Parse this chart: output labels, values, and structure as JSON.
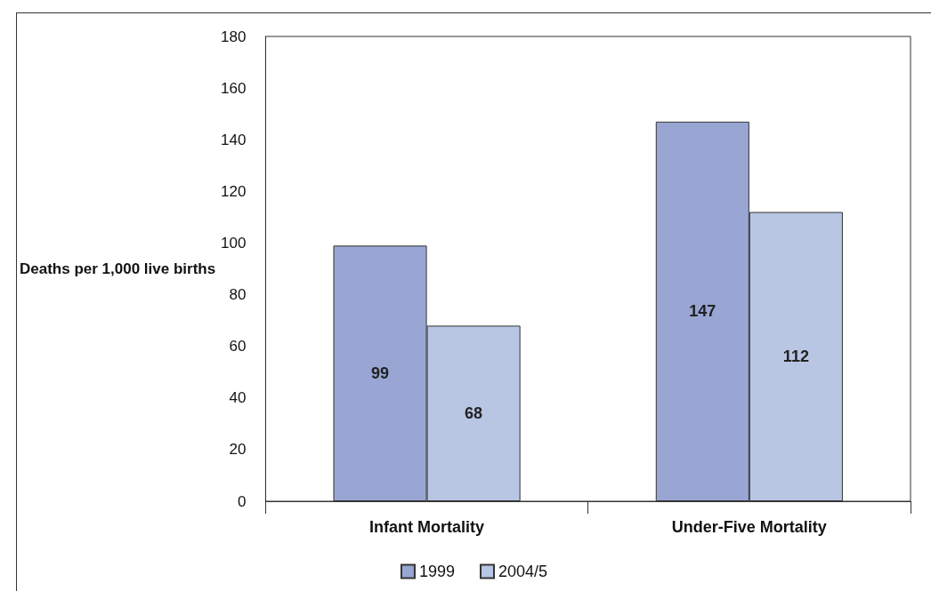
{
  "chart_data": {
    "type": "bar",
    "ylabel": "Deaths per 1,000 live births",
    "categories": [
      "Infant Mortality",
      "Under-Five Mortality"
    ],
    "series": [
      {
        "name": "1999",
        "color": "#99a6d4",
        "values": [
          99,
          147
        ]
      },
      {
        "name": "2004/5",
        "color": "#b8c6e4",
        "values": [
          68,
          112
        ]
      }
    ],
    "ylim": [
      0,
      180
    ],
    "yticks": [
      0,
      20,
      40,
      60,
      80,
      100,
      120,
      140,
      160,
      180
    ],
    "grid": false,
    "legend": "bottom",
    "data_labels": true
  }
}
